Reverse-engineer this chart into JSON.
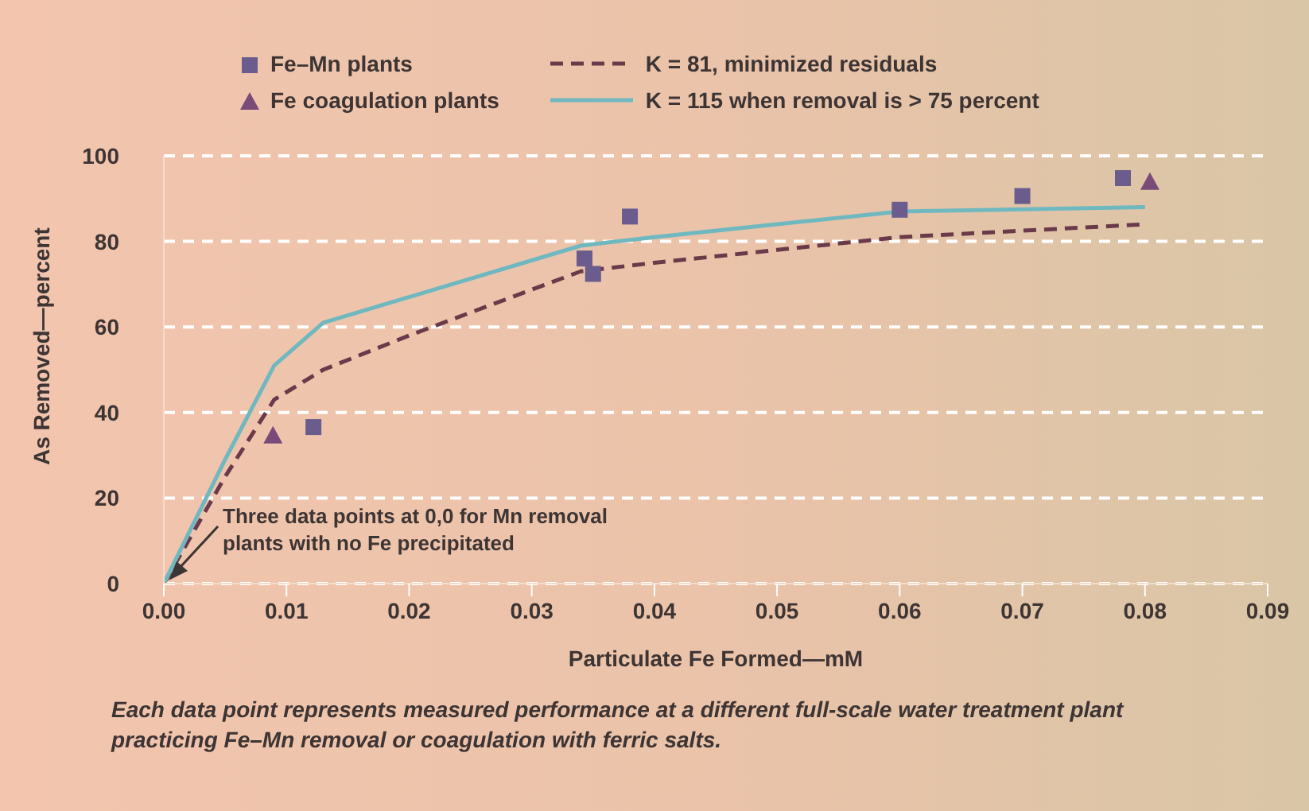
{
  "chart_data": {
    "type": "scatter",
    "xlabel": "Particulate Fe Formed—mM",
    "ylabel": "As Removed—percent",
    "xlim": [
      0,
      0.09
    ],
    "xticks": [
      {
        "value": 0,
        "label": "0.00"
      },
      {
        "value": 0.01,
        "label": "0.01"
      },
      {
        "value": 0.02,
        "label": "0.02"
      },
      {
        "value": 0.03,
        "label": "0.03"
      },
      {
        "value": 0.04,
        "label": "0.04"
      },
      {
        "value": 0.05,
        "label": "0.05"
      },
      {
        "value": 0.06,
        "label": "0.06"
      },
      {
        "value": 0.07,
        "label": "0.07"
      },
      {
        "value": 0.08,
        "label": "0.08"
      },
      {
        "value": 0.09,
        "label": "0.09"
      }
    ],
    "ylim": [
      0,
      100
    ],
    "yticks": [
      0,
      20,
      40,
      60,
      80,
      100
    ],
    "grid": "y",
    "legend": "top",
    "series": [
      {
        "name": "Fe–Mn plants",
        "color": "#6a5c8c",
        "marker": "square",
        "x": [
          0.0122,
          0.0343,
          0.035,
          0.038,
          0.06,
          0.07,
          0.0782
        ],
        "values": [
          36.6,
          76,
          72.4,
          85.8,
          87.4,
          90.6,
          94.8
        ]
      },
      {
        "name": "Fe coagulation plants",
        "color": "#7a4a78",
        "marker": "triangle",
        "x": [
          0.0089,
          0.0804
        ],
        "values": [
          34.6,
          93.9
        ]
      },
      {
        "type": "line",
        "name": "K = 81, minimized residuals",
        "color": "#6b3a4a",
        "line_style": "dashed",
        "marker": "none",
        "x": [
          0,
          0.005,
          0.009,
          0.013,
          0.02,
          0.034,
          0.04,
          0.05,
          0.06,
          0.07,
          0.08
        ],
        "values": [
          0,
          25,
          43,
          50,
          58,
          73,
          75,
          78,
          81,
          82.5,
          84
        ]
      },
      {
        "type": "line",
        "name": "K = 115 when removal is > 75 percent",
        "color": "#6fb8c0",
        "line_style": "solid",
        "marker": "none",
        "x": [
          0,
          0.005,
          0.009,
          0.013,
          0.02,
          0.034,
          0.04,
          0.05,
          0.06,
          0.07,
          0.08
        ],
        "values": [
          0,
          29,
          51,
          61,
          67,
          79,
          81,
          84,
          87,
          87.5,
          88
        ]
      }
    ],
    "annotations": [
      "Three data points at 0,0 for Mn removal plants with no Fe precipitated",
      "Each data point represents measured performance at a different full-scale water treatment plant practicing Fe–Mn removal or coagulation with ferric salts."
    ]
  }
}
